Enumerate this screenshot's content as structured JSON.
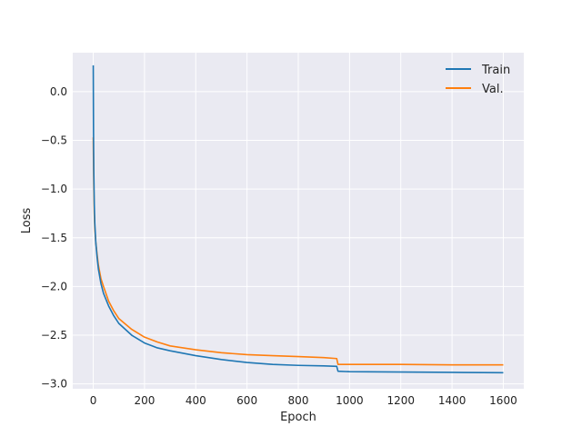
{
  "chart_data": {
    "type": "line",
    "title": "",
    "xlabel": "Epoch",
    "ylabel": "Loss",
    "xlim": [
      -80,
      1680
    ],
    "ylim": [
      -3.05,
      0.4
    ],
    "xticks": [
      0,
      200,
      400,
      600,
      800,
      1000,
      1200,
      1400,
      1600
    ],
    "yticks": [
      0.0,
      -0.5,
      -1.0,
      -1.5,
      -2.0,
      -2.5,
      -3.0
    ],
    "xtick_labels": [
      "0",
      "200",
      "400",
      "600",
      "800",
      "1000",
      "1200",
      "1400",
      "1600"
    ],
    "ytick_labels": [
      "0.0",
      "−0.5",
      "−1.0",
      "−1.5",
      "−2.0",
      "−2.5",
      "−3.0"
    ],
    "grid": true,
    "legend_position": "top-right",
    "series": [
      {
        "name": "Train",
        "color": "#1f77b4",
        "x": [
          0,
          1,
          2,
          4,
          6,
          10,
          15,
          20,
          30,
          40,
          60,
          80,
          100,
          150,
          200,
          250,
          300,
          400,
          500,
          600,
          700,
          800,
          900,
          950,
          955,
          1000,
          1200,
          1400,
          1600
        ],
        "y": [
          0.27,
          -0.4,
          -0.8,
          -1.15,
          -1.35,
          -1.55,
          -1.7,
          -1.82,
          -1.97,
          -2.07,
          -2.2,
          -2.3,
          -2.38,
          -2.5,
          -2.58,
          -2.63,
          -2.66,
          -2.71,
          -2.75,
          -2.78,
          -2.8,
          -2.81,
          -2.815,
          -2.82,
          -2.87,
          -2.875,
          -2.878,
          -2.882,
          -2.885
        ]
      },
      {
        "name": "Val.",
        "color": "#ff7f0e",
        "x": [
          0,
          1,
          2,
          4,
          6,
          10,
          15,
          20,
          30,
          40,
          60,
          80,
          100,
          150,
          200,
          250,
          300,
          400,
          500,
          600,
          700,
          800,
          900,
          950,
          955,
          1000,
          1200,
          1400,
          1600
        ],
        "y": [
          -0.47,
          -0.7,
          -0.95,
          -1.25,
          -1.4,
          -1.55,
          -1.67,
          -1.78,
          -1.92,
          -2.0,
          -2.15,
          -2.25,
          -2.33,
          -2.44,
          -2.52,
          -2.57,
          -2.61,
          -2.65,
          -2.68,
          -2.7,
          -2.71,
          -2.72,
          -2.73,
          -2.74,
          -2.8,
          -2.8,
          -2.8,
          -2.805,
          -2.805
        ]
      }
    ]
  }
}
